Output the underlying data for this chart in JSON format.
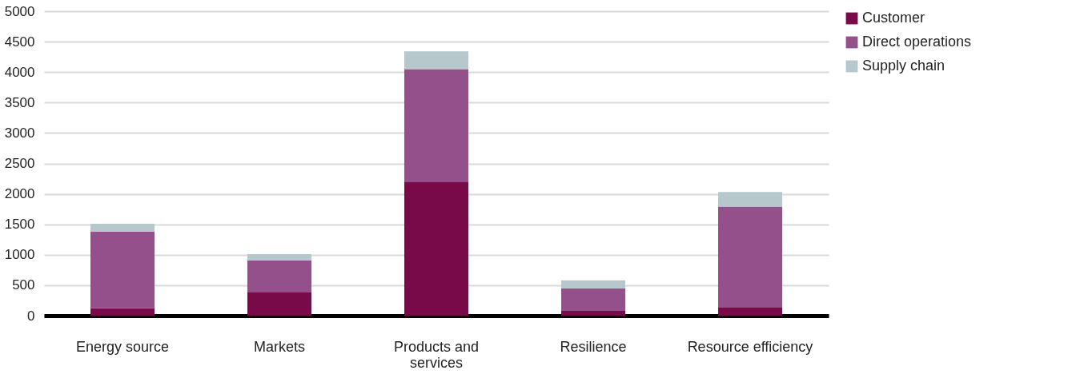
{
  "chart_data": {
    "type": "bar",
    "stacked": true,
    "categories": [
      "Energy source",
      "Markets",
      "Products and services",
      "Resilience",
      "Resource efficiency"
    ],
    "series": [
      {
        "name": "Customer",
        "color": "#780a4a",
        "values": [
          120,
          390,
          2200,
          80,
          140
        ]
      },
      {
        "name": "Direct operations",
        "color": "#93508b",
        "values": [
          1260,
          520,
          1850,
          370,
          1650
        ]
      },
      {
        "name": "Supply chain",
        "color": "#b6c8cc",
        "values": [
          130,
          100,
          290,
          130,
          240
        ]
      }
    ],
    "ylim": [
      0,
      5000
    ],
    "yticks": [
      0,
      500,
      1000,
      1500,
      2000,
      2500,
      3000,
      3500,
      4000,
      4500,
      5000
    ],
    "grid": "y",
    "legend": "right"
  }
}
